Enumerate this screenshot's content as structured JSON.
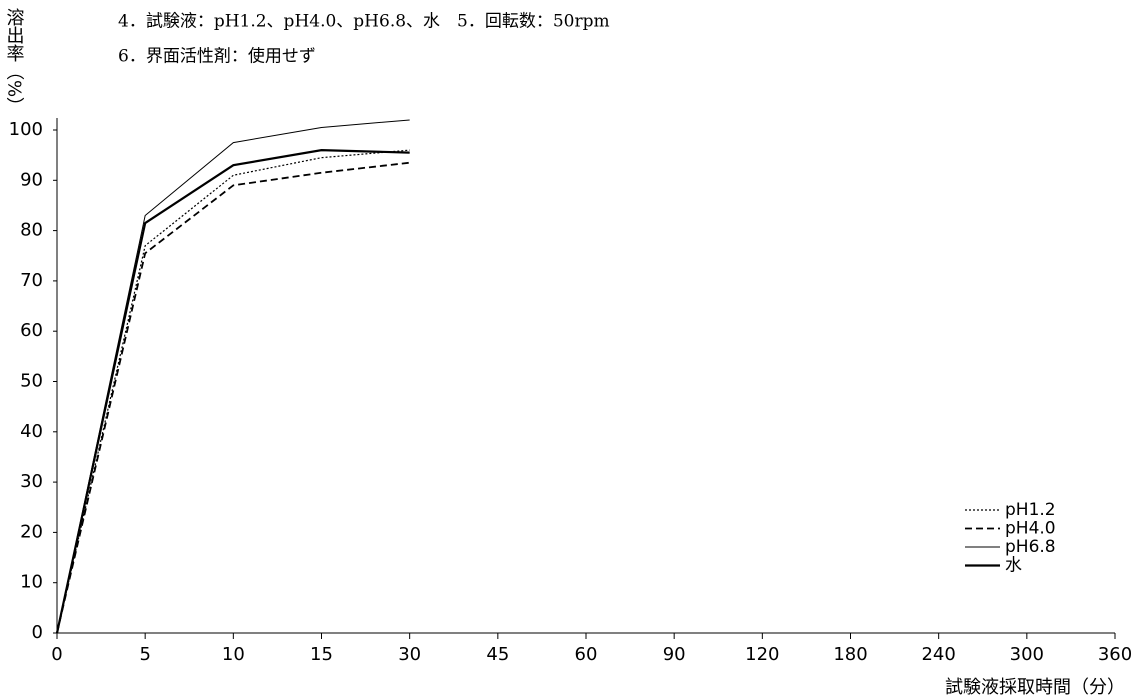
{
  "chart_data": {
    "type": "line",
    "notes": [
      "4．試験液：pH1.2、pH4.0、pH6.8、水　5．回転数：50rpm",
      "6．界面活性剤：使用せず"
    ],
    "y_label": "溶出率（%）",
    "x_label": "試験液採取時間（分）",
    "categories": [
      "0",
      "5",
      "10",
      "15",
      "30",
      "45",
      "60",
      "90",
      "120",
      "180",
      "240",
      "300",
      "360"
    ],
    "series": [
      {
        "name": "pH1.2",
        "color": "#000000",
        "dash": "2,2",
        "width": 1.2,
        "values": [
          0,
          77,
          91,
          94.5,
          96,
          null,
          null,
          null,
          null,
          null,
          null,
          null,
          null
        ]
      },
      {
        "name": "pH4.0",
        "color": "#000000",
        "dash": "7,4",
        "width": 1.8,
        "values": [
          0,
          75.5,
          89,
          91.5,
          93.5,
          null,
          null,
          null,
          null,
          null,
          null,
          null,
          null
        ]
      },
      {
        "name": "pH6.8",
        "color": "#000000",
        "dash": "none",
        "width": 1,
        "values": [
          0,
          83,
          97.5,
          100.5,
          102,
          null,
          null,
          null,
          null,
          null,
          null,
          null,
          null
        ]
      },
      {
        "name": "水",
        "color": "#000000",
        "dash": "none",
        "width": 2.2,
        "values": [
          0,
          81.5,
          93,
          96,
          95.5,
          null,
          null,
          null,
          null,
          null,
          null,
          null,
          null
        ]
      }
    ],
    "ylim": [
      0,
      100
    ],
    "yticks": [
      0,
      10,
      20,
      30,
      40,
      50,
      60,
      70,
      80,
      90,
      100
    ],
    "legend": "lower right"
  }
}
